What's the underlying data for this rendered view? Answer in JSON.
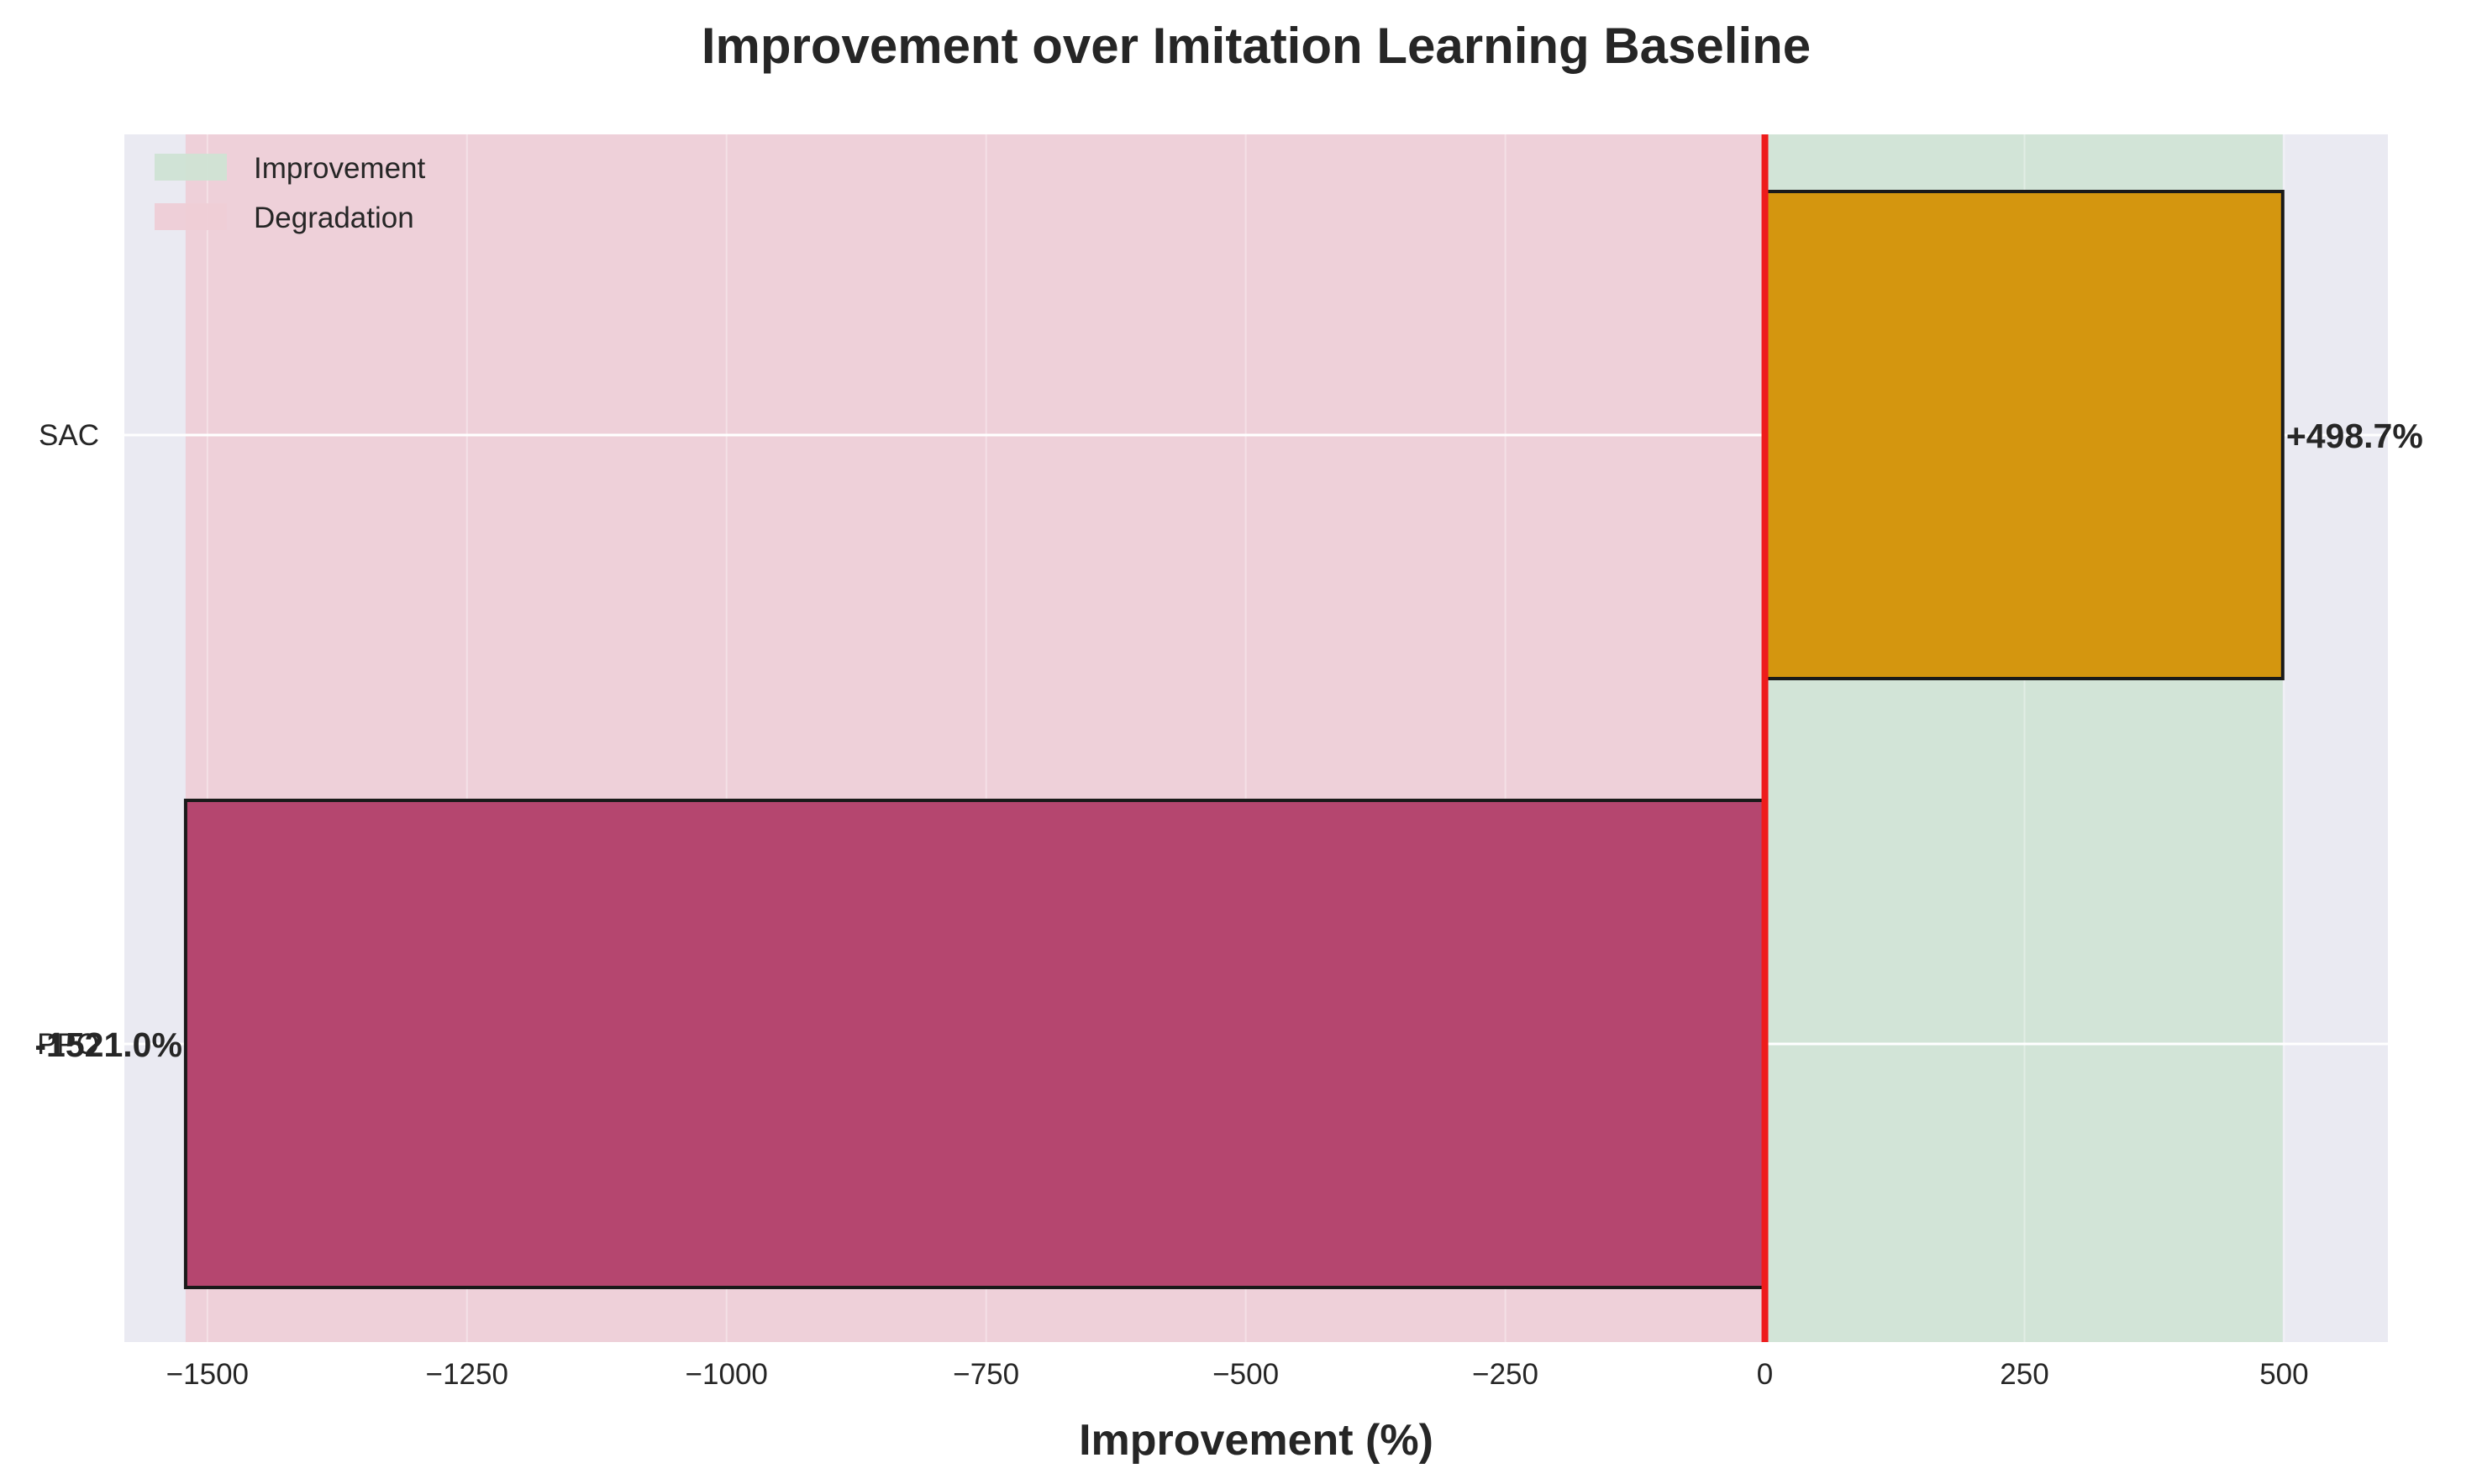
{
  "chart_data": {
    "type": "bar",
    "orientation": "horizontal",
    "title": "Improvement over Imitation Learning Baseline",
    "xlabel": "Improvement (%)",
    "ylabel": "",
    "xlim": [
      -1580,
      600
    ],
    "xticks": [
      -1500,
      -1250,
      -1000,
      -750,
      -500,
      -250,
      0,
      250,
      500
    ],
    "xtick_labels": [
      "−1500",
      "−1250",
      "−1000",
      "−750",
      "−500",
      "−250",
      "0",
      "250",
      "500"
    ],
    "categories": [
      "PPO",
      "SAC"
    ],
    "values": [
      -1521.0,
      498.7
    ],
    "bar_labels": [
      "-1521.0%",
      "+498.7%"
    ],
    "bar_colors": [
      "#b5466f",
      "#d4960f"
    ],
    "reference_line": 0,
    "reference_color": "#ee1c1c",
    "shaded_regions": [
      {
        "name": "Improvement",
        "from": 0,
        "to": 498.7,
        "color": "#cfe3d4"
      },
      {
        "name": "Degradation",
        "from": -1521.0,
        "to": 0,
        "color": "#eecdd6"
      }
    ],
    "legend": [
      "Improvement",
      "Degradation"
    ],
    "legend_position": "upper-left",
    "grid": true,
    "background": "#eaeaf2"
  }
}
